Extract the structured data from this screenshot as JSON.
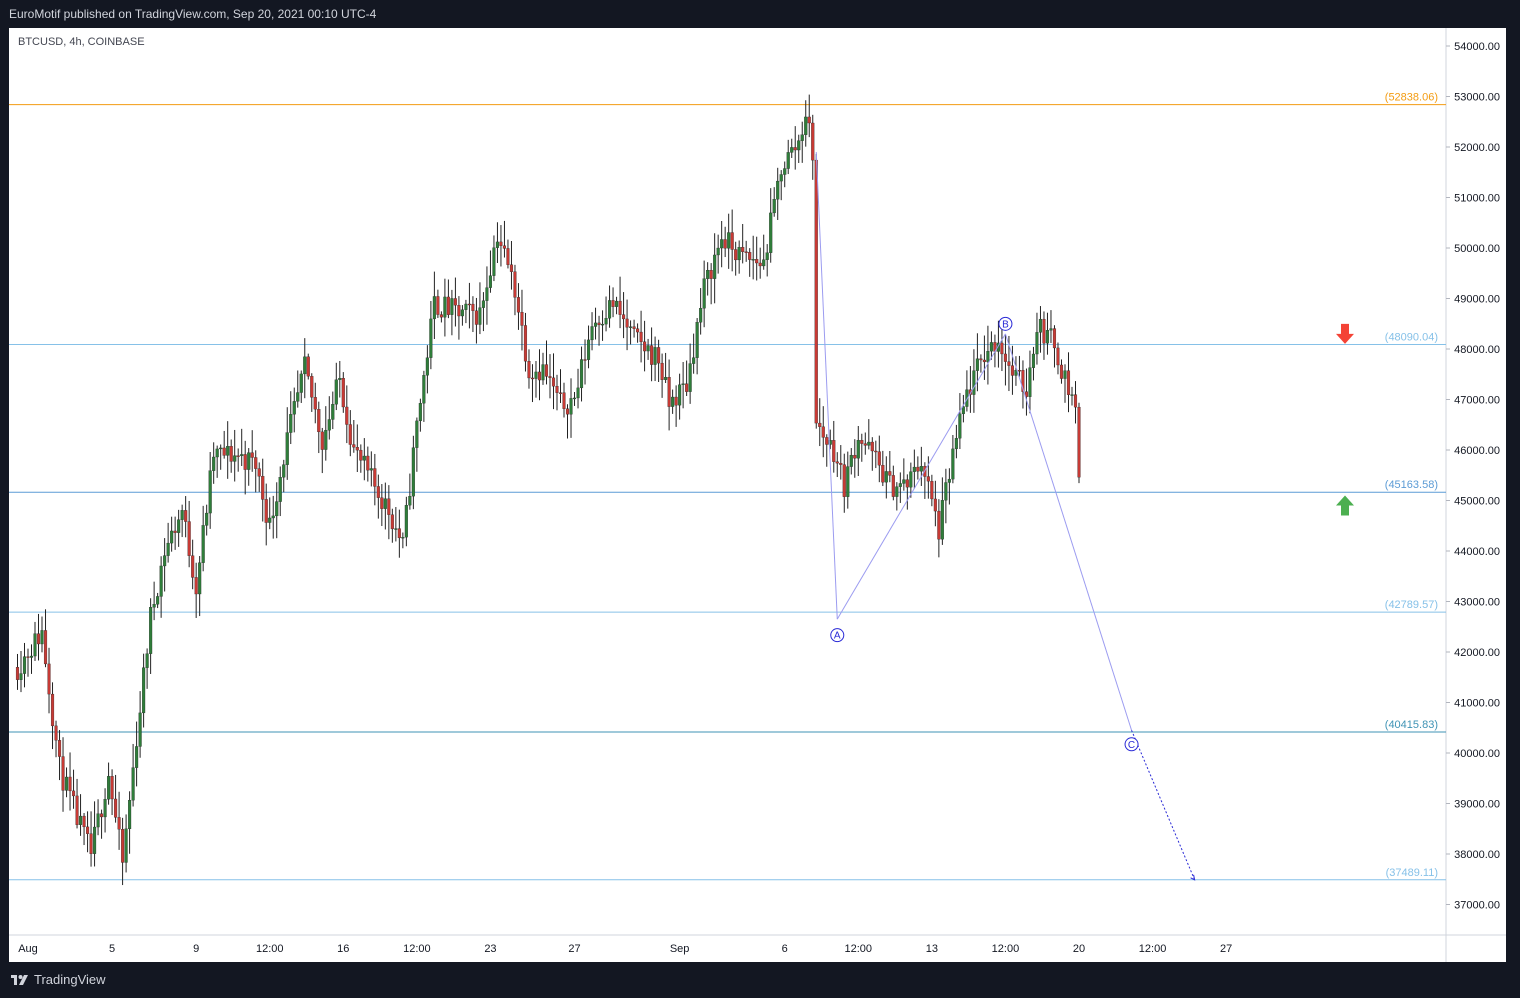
{
  "header": {
    "text": "EuroMotif published on TradingView.com, Sep 20, 2021 00:10 UTC-4"
  },
  "footer": {
    "logo_icon": "tradingview-logo-icon",
    "brand": "TradingView"
  },
  "symbol_info": "BTCUSD, 4h, COINBASE",
  "colors": {
    "frame_bg": "#131722",
    "chart_bg": "#ffffff",
    "up_candle": "#2f7d3a",
    "down_candle": "#c73a35",
    "wave_line": "#9c9cf0",
    "wave_marker": "#2929d6",
    "orange_level": "#f39c12",
    "blue_level": "#5b9bd5",
    "light_level": "#86c1e8",
    "red_arrow": "#f44336",
    "green_arrow": "#4caf50"
  },
  "chart_data": {
    "type": "candlestick",
    "symbol": "BTCUSD",
    "interval": "4h",
    "exchange": "COINBASE",
    "y_axis": {
      "range": [
        36400,
        54400
      ],
      "ticks": [
        "54000.00",
        "53000.00",
        "52000.00",
        "51000.00",
        "50000.00",
        "49000.00",
        "48000.00",
        "47000.00",
        "46000.00",
        "45000.00",
        "44000.00",
        "43000.00",
        "42000.00",
        "41000.00",
        "40000.00",
        "39000.00",
        "38000.00",
        "37000.00"
      ]
    },
    "x_axis": {
      "ticks": [
        "Aug",
        "5",
        "9",
        "12:00",
        "16",
        "12:00",
        "23",
        "27",
        "Sep",
        "6",
        "12:00",
        "13",
        "12:00",
        "20",
        "12:00",
        "27"
      ]
    },
    "levels": [
      {
        "price": 52838.06,
        "label": "(52838.06)",
        "color": "orange"
      },
      {
        "price": 48090.04,
        "label": "(48090.04)",
        "color": "light"
      },
      {
        "price": 45163.58,
        "label": "(45163.58)",
        "color": "blue"
      },
      {
        "price": 42789.57,
        "label": "(42789.57)",
        "color": "light"
      },
      {
        "price": 40415.83,
        "label": "(40415.83)",
        "color": "teal"
      },
      {
        "price": 37489.11,
        "label": "(37489.11)",
        "color": "light"
      }
    ],
    "wave_labels": [
      "A",
      "B",
      "C"
    ],
    "wave_points": [
      {
        "label": "",
        "date": "Sep 7",
        "price": 51900
      },
      {
        "label": "A",
        "date": "Sep 8",
        "price": 42650
      },
      {
        "label": "B",
        "date": "Sep 16",
        "price": 48300
      },
      {
        "label": "C",
        "date": "Sep 22",
        "price": 40450
      },
      {
        "label": "",
        "date": "Sep 25",
        "price": 37489.11
      }
    ],
    "signals": [
      {
        "type": "sell-arrow",
        "price": 48300
      },
      {
        "type": "buy-arrow",
        "price": 44900
      }
    ],
    "price_path": [
      [
        "Jul 31 12:00",
        41700
      ],
      [
        "Aug 1 16:00",
        42400
      ],
      [
        "Aug 2 12:00",
        39700
      ],
      [
        "Aug 3 08:00",
        38700
      ],
      [
        "Aug 4 00:00",
        38000
      ],
      [
        "Aug 4 20:00",
        39600
      ],
      [
        "Aug 5 12:00",
        37800
      ],
      [
        "Aug 6 04:00",
        40300
      ],
      [
        "Aug 6 20:00",
        42700
      ],
      [
        "Aug 7 12:00",
        44000
      ],
      [
        "Aug 8 08:00",
        44800
      ],
      [
        "Aug 9 00:00",
        43300
      ],
      [
        "Aug 9 20:00",
        45900
      ],
      [
        "Aug 11 00:00",
        45900
      ],
      [
        "Aug 11 20:00",
        45700
      ],
      [
        "Aug 12 12:00",
        44500
      ],
      [
        "Aug 13 08:00",
        46200
      ],
      [
        "Aug 14 04:00",
        47600
      ],
      [
        "Aug 15 00:00",
        46200
      ],
      [
        "Aug 15 20:00",
        47400
      ],
      [
        "Aug 16 12:00",
        46000
      ],
      [
        "Aug 17 08:00",
        45400
      ],
      [
        "Aug 18 04:00",
        44800
      ],
      [
        "Aug 18 20:00",
        44100
      ],
      [
        "Aug 19 12:00",
        46500
      ],
      [
        "Aug 20 08:00",
        48900
      ],
      [
        "Aug 21 12:00",
        48700
      ],
      [
        "Aug 22 12:00",
        48700
      ],
      [
        "Aug 23 08:00",
        50300
      ],
      [
        "Aug 24 04:00",
        49200
      ],
      [
        "Aug 24 20:00",
        47600
      ],
      [
        "Aug 25 12:00",
        47600
      ],
      [
        "Aug 26 08:00",
        46900
      ],
      [
        "Aug 27 00:00",
        47000
      ],
      [
        "Aug 27 20:00",
        48500
      ],
      [
        "Aug 28 20:00",
        48900
      ],
      [
        "Aug 29 20:00",
        48200
      ],
      [
        "Aug 31 00:00",
        47800
      ],
      [
        "Aug 31 12:00",
        46900
      ],
      [
        "Sep 1 08:00",
        47300
      ],
      [
        "Sep 2 04:00",
        49200
      ],
      [
        "Sep 3 00:00",
        50200
      ],
      [
        "Sep 4 00:00",
        49800
      ],
      [
        "Sep 5 00:00",
        49700
      ],
      [
        "Sep 5 20:00",
        51600
      ],
      [
        "Sep 6 16:00",
        52100
      ],
      [
        "Sep 7 00:00",
        52700
      ],
      [
        "Sep 7 08:00",
        51900
      ],
      [
        "Sep 7 12:00",
        46500
      ],
      [
        "Sep 8 08:00",
        46000
      ],
      [
        "Sep 8 20:00",
        45300
      ],
      [
        "Sep 9 12:00",
        46300
      ],
      [
        "Sep 10 08:00",
        45800
      ],
      [
        "Sep 11 00:00",
        45300
      ],
      [
        "Sep 11 20:00",
        45300
      ],
      [
        "Sep 12 12:00",
        45800
      ],
      [
        "Sep 13 08:00",
        44400
      ],
      [
        "Sep 14 00:00",
        45900
      ],
      [
        "Sep 14 16:00",
        47100
      ],
      [
        "Sep 15 12:00",
        47900
      ],
      [
        "Sep 16 04:00",
        48200
      ],
      [
        "Sep 16 20:00",
        47500
      ],
      [
        "Sep 17 12:00",
        47200
      ],
      [
        "Sep 18 00:00",
        48500
      ],
      [
        "Sep 18 20:00",
        48100
      ],
      [
        "Sep 19 12:00",
        47200
      ],
      [
        "Sep 19 20:00",
        46900
      ],
      [
        "Sep 20 00:00",
        45400
      ]
    ]
  }
}
